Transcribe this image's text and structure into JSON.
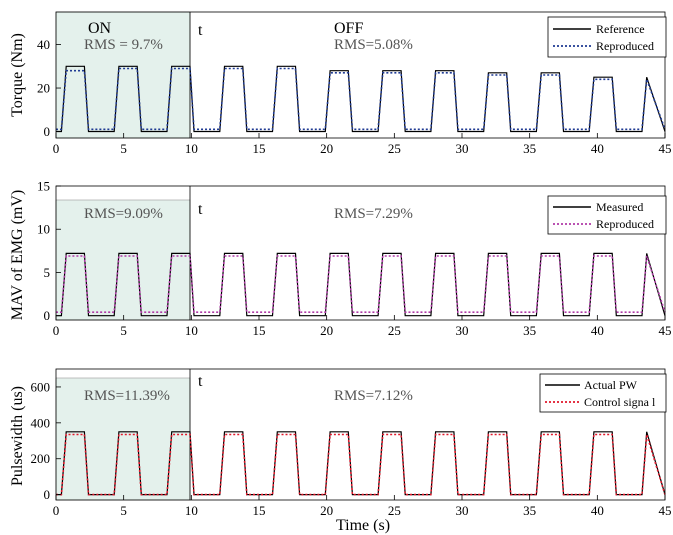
{
  "figure": {
    "x_axis_title": "Time (s)"
  },
  "chart_data": [
    {
      "type": "line",
      "ylabel": "Torque (Nm)",
      "xlim": [
        0,
        45
      ],
      "ylim": [
        -3,
        55
      ],
      "xticks": [
        0,
        5,
        10,
        15,
        20,
        25,
        30,
        35,
        40,
        45
      ],
      "yticks": [
        0,
        20,
        40
      ],
      "shade_x": [
        0,
        10
      ],
      "marker_x": 10,
      "annotations": {
        "on": "ON",
        "t": "t",
        "off": "OFF",
        "rms_on": "RMS = 9.7%",
        "rms_off": "RMS=5.08%"
      },
      "legend": [
        "Reference",
        "Reproduced"
      ],
      "legend_position": "top-right",
      "series": [
        {
          "name": "Reference",
          "color": "#000000",
          "style": "solid",
          "high": 30,
          "low": 0,
          "highs": [
            30,
            30,
            30,
            30,
            30,
            28,
            28,
            28,
            27,
            27,
            25,
            25,
            24,
            24,
            24,
            23,
            23,
            23,
            23,
            23,
            23,
            23,
            23,
            23,
            23,
            23
          ]
        },
        {
          "name": "Reproduced",
          "color": "#1f3a93",
          "style": "dotted",
          "high": 29,
          "low": 1,
          "highs": [
            28,
            29,
            29,
            29,
            29,
            27,
            27,
            27,
            26,
            26,
            24,
            24,
            23,
            23,
            23,
            22,
            22,
            22,
            22,
            22,
            22,
            22,
            22,
            22,
            22,
            22
          ]
        }
      ],
      "pulses_start": [
        0.4,
        4.3,
        8.2,
        12.1,
        16.0,
        19.9,
        23.8,
        27.7,
        31.6,
        35.5,
        39.4,
        43.3
      ]
    },
    {
      "type": "line",
      "ylabel": "MAV of EMG (mV)",
      "xlim": [
        0,
        45
      ],
      "ylim": [
        -0.5,
        15
      ],
      "xticks": [
        0,
        5,
        10,
        15,
        20,
        25,
        30,
        35,
        40,
        45
      ],
      "yticks": [
        0,
        5,
        10,
        15
      ],
      "shade_x": [
        0,
        10
      ],
      "marker_x": 10,
      "annotations": {
        "t": "t",
        "rms_on": "RMS=9.09%",
        "rms_off": "RMS=7.29%"
      },
      "legend": [
        "Measured",
        "Reproduced"
      ],
      "legend_position": "top-right",
      "series": [
        {
          "name": "Measured",
          "color": "#000000",
          "style": "solid",
          "high": 7.2,
          "low": 0
        },
        {
          "name": "Reproduced",
          "color": "#b03aa8",
          "style": "dotted",
          "high": 6.9,
          "low": 0.4
        }
      ]
    },
    {
      "type": "line",
      "ylabel": "Pulsewidth (us)",
      "xlim": [
        0,
        45
      ],
      "ylim": [
        -30,
        700
      ],
      "xticks": [
        0,
        5,
        10,
        15,
        20,
        25,
        30,
        35,
        40,
        45
      ],
      "yticks": [
        0,
        200,
        400,
        600
      ],
      "shade_x": [
        0,
        10
      ],
      "marker_x": 10,
      "annotations": {
        "t": "t",
        "rms_on": "RMS=11.39%",
        "rms_off": "RMS=7.12%"
      },
      "legend": [
        "Actual PW",
        "Control signa l"
      ],
      "legend_position": "top-right",
      "series": [
        {
          "name": "Actual PW",
          "color": "#000000",
          "style": "solid",
          "high": 350,
          "low": 0
        },
        {
          "name": "Control signa l",
          "color": "#e0182b",
          "style": "dotted",
          "high": 335,
          "low": 0
        }
      ]
    }
  ]
}
